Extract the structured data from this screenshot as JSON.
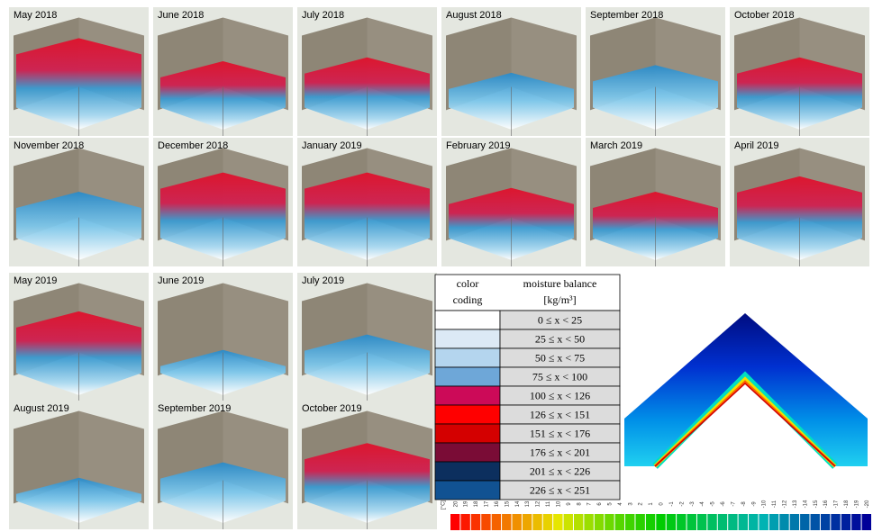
{
  "panels": [
    {
      "label": "May 2018"
    },
    {
      "label": "June 2018"
    },
    {
      "label": "July 2018"
    },
    {
      "label": "August 2018"
    },
    {
      "label": "September 2018"
    },
    {
      "label": "October 2018"
    },
    {
      "label": "November 2018"
    },
    {
      "label": "December 2018"
    },
    {
      "label": "January 2019"
    },
    {
      "label": "February 2019"
    },
    {
      "label": "March 2019"
    },
    {
      "label": "April 2019"
    },
    {
      "label": "May 2019"
    },
    {
      "label": "June 2019"
    },
    {
      "label": "July 2019"
    },
    {
      "label": "August 2019"
    },
    {
      "label": "September 2019"
    },
    {
      "label": "October 2019"
    }
  ],
  "table": {
    "header_color": [
      "color",
      "coding"
    ],
    "header_value": [
      "moisture balance",
      "[kg/m³]"
    ],
    "rows": [
      {
        "color": "#ffffff",
        "range": "0 ≤ x < 25"
      },
      {
        "color": "#dce9f5",
        "range": "25 ≤ x < 50"
      },
      {
        "color": "#b4d5ee",
        "range": "50 ≤ x < 75"
      },
      {
        "color": "#6ea7d8",
        "range": "75 ≤ x < 100"
      },
      {
        "color": "#cc0a58",
        "range": "100 ≤ x < 126"
      },
      {
        "color": "#ff0000",
        "range": "126 ≤ x < 151"
      },
      {
        "color": "#d40000",
        "range": "151 ≤ x < 176"
      },
      {
        "color": "#7a0c36",
        "range": "176 ≤ x < 201"
      },
      {
        "color": "#0c2f5e",
        "range": "201 ≤ x < 226"
      },
      {
        "color": "#115292",
        "range": "226 ≤ x < 251"
      }
    ]
  },
  "scale": {
    "unit": "[°C]",
    "labels": [
      20,
      19,
      18,
      17,
      16,
      15,
      14,
      13,
      12,
      11,
      10,
      9,
      8,
      7,
      6,
      5,
      4,
      3,
      2,
      1,
      0,
      -1,
      -2,
      -3,
      -4,
      -5,
      -6,
      -7,
      -8,
      -9,
      -10,
      -11,
      -12,
      -13,
      -14,
      -15,
      -16,
      -17,
      -18,
      -19,
      -20
    ]
  }
}
